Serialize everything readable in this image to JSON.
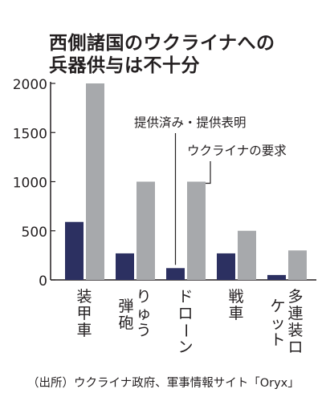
{
  "title_lines": [
    "西側諸国のウクライナへの",
    "兵器供与は不十分"
  ],
  "source": "（出所）ウクライナ政府、軍事情報サイト「Oryx」",
  "colors": {
    "provided": "#2c3061",
    "requested": "#a7a9ac",
    "axis": "#231f20"
  },
  "chart_data": {
    "type": "bar",
    "categories": [
      "装甲車",
      "りゅう弾砲",
      "ドローン",
      "戦車",
      "多連装ロケット"
    ],
    "series": [
      {
        "name": "提供済み・提供表明",
        "values": [
          590,
          270,
          120,
          270,
          50
        ]
      },
      {
        "name": "ウクライナの要求",
        "values": [
          2000,
          1000,
          1000,
          500,
          300
        ]
      }
    ],
    "yticks": [
      "0",
      "500",
      "1000",
      "1500",
      "2000"
    ],
    "ylim": [
      0,
      2000
    ],
    "grid": false,
    "annotations": [
      "提供済み・提供表明",
      "ウクライナの要求"
    ]
  }
}
